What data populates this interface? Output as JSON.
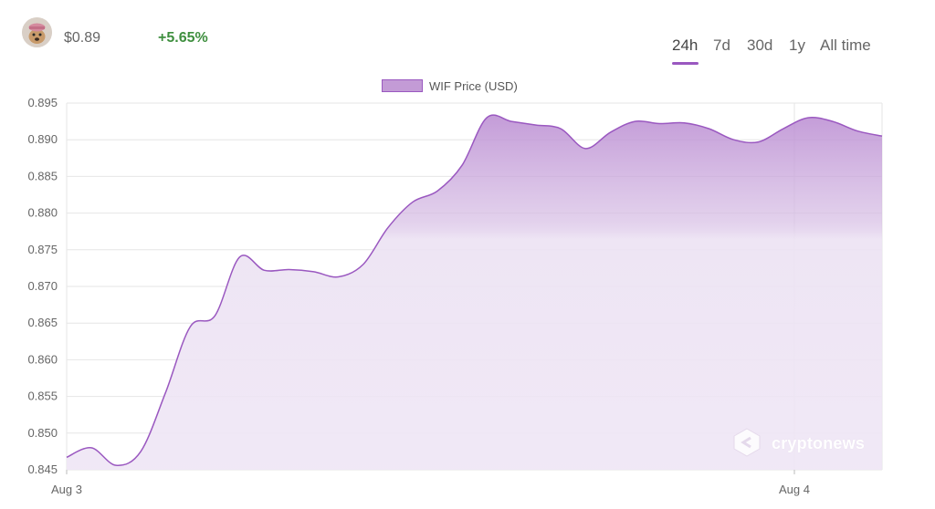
{
  "header": {
    "token_icon": "dogwifhat-avatar-icon",
    "price": "$0.89",
    "change": "+5.65%",
    "change_color": "#3f8f3f"
  },
  "time_ranges": [
    {
      "label": "24h",
      "active": true
    },
    {
      "label": "7d",
      "active": false
    },
    {
      "label": "30d",
      "active": false
    },
    {
      "label": "1y",
      "active": false
    },
    {
      "label": "All time",
      "active": false
    }
  ],
  "watermark": "cryptonews",
  "colors": {
    "accent": "#9a58c0",
    "fill_top": "#c39bd6",
    "fill_bottom": "#efe6f5",
    "grid": "#e6e6e6"
  },
  "chart_data": {
    "type": "area",
    "legend": "WIF Price (USD)",
    "legend_position": "top-center",
    "grid": true,
    "ylim": [
      0.845,
      0.895
    ],
    "y_ticks": [
      "0.895",
      "0.890",
      "0.885",
      "0.880",
      "0.875",
      "0.870",
      "0.865",
      "0.860",
      "0.855",
      "0.850",
      "0.845"
    ],
    "x_tick_labels": [
      "Aug 3",
      "Aug 4"
    ],
    "series": [
      {
        "name": "WIF Price (USD)",
        "x": [
          0,
          1,
          2,
          3,
          4,
          5,
          6,
          7,
          8,
          9,
          10,
          11,
          12,
          13,
          14,
          15,
          16,
          17,
          18,
          19,
          20,
          21,
          22,
          23,
          24,
          25,
          26,
          27,
          28,
          29,
          30,
          31,
          32,
          33
        ],
        "values": [
          0.8467,
          0.848,
          0.8456,
          0.8475,
          0.8555,
          0.8645,
          0.866,
          0.874,
          0.8722,
          0.8723,
          0.872,
          0.8713,
          0.873,
          0.878,
          0.8815,
          0.883,
          0.8865,
          0.893,
          0.8925,
          0.892,
          0.8915,
          0.8888,
          0.891,
          0.8925,
          0.8922,
          0.8923,
          0.8915,
          0.89,
          0.8897,
          0.8915,
          0.893,
          0.8925,
          0.8912,
          0.8905
        ]
      }
    ]
  }
}
